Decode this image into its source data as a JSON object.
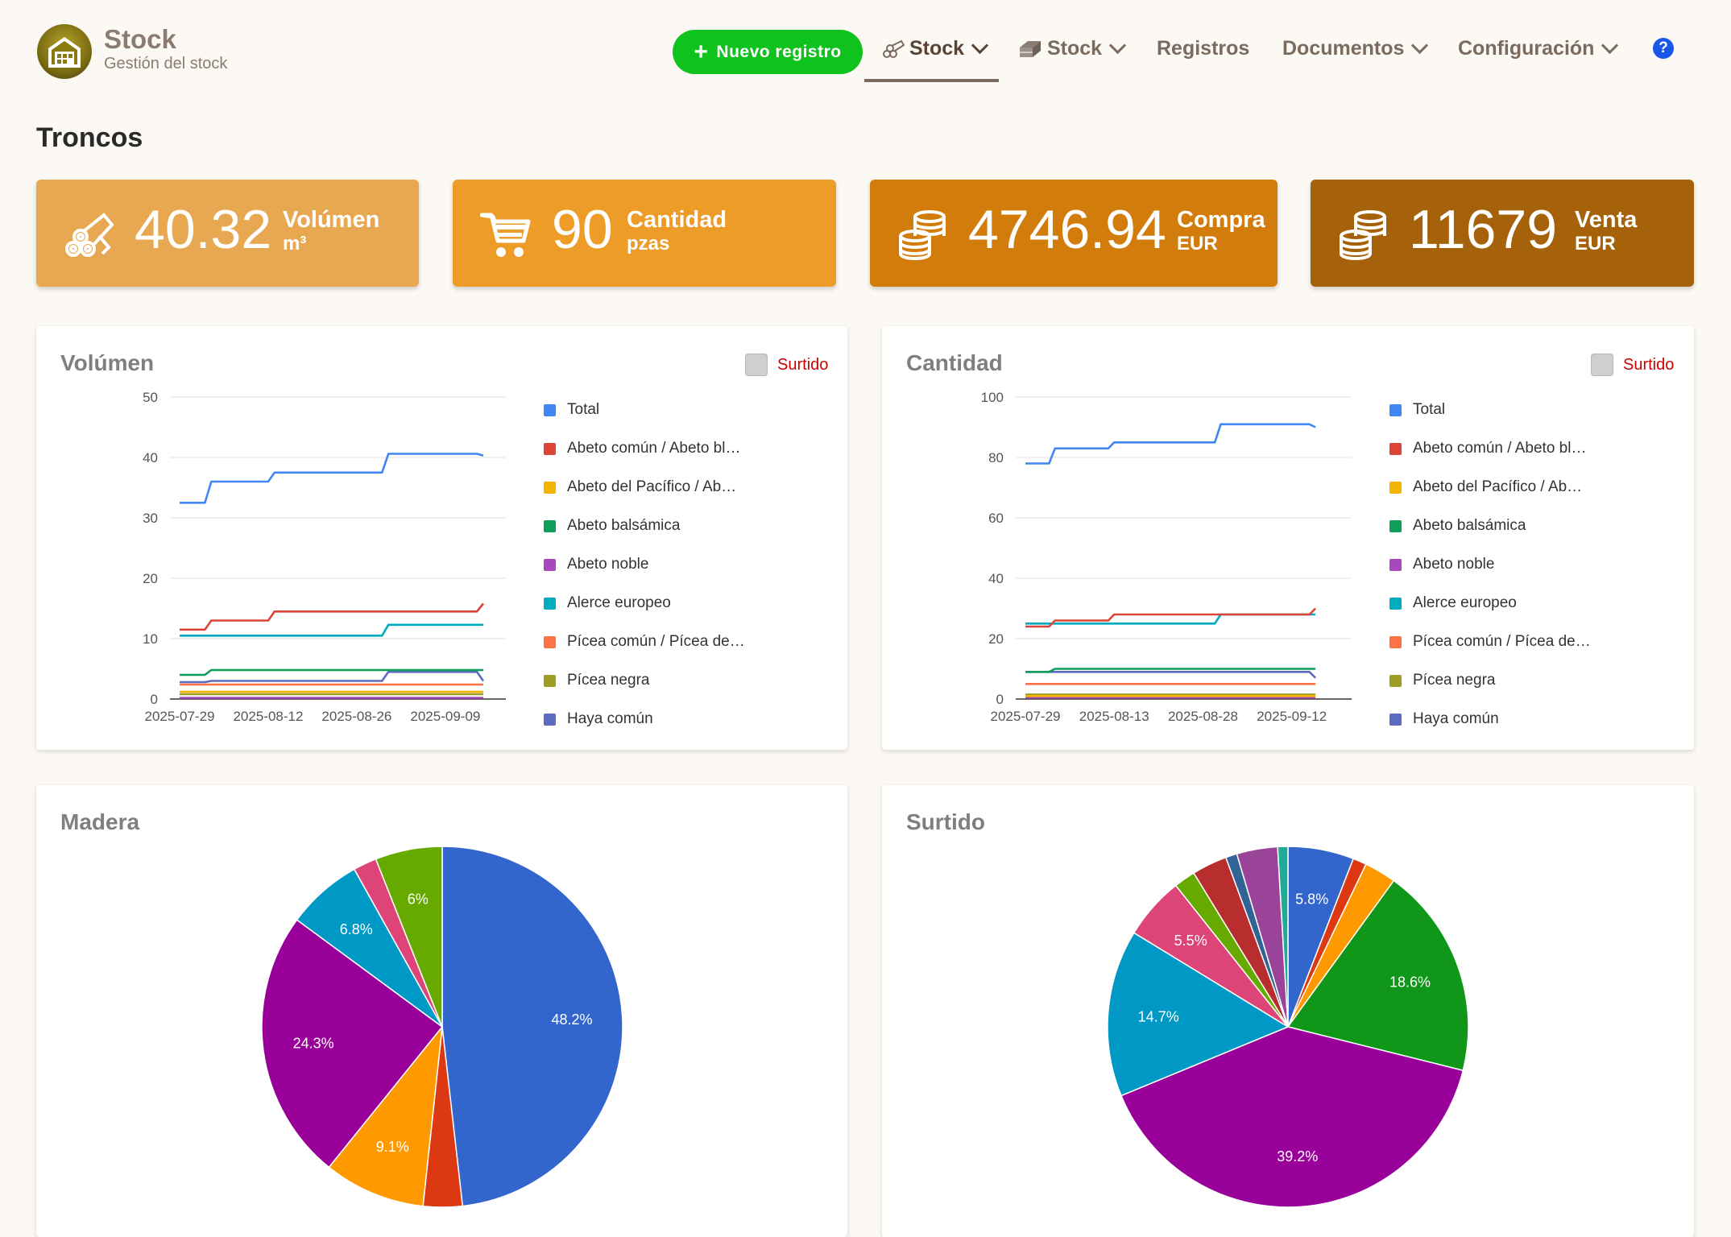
{
  "app": {
    "title": "Stock",
    "subtitle": "Gestión del stock"
  },
  "nav": {
    "new_button": "Nuevo registro",
    "items": [
      {
        "label": "Stock",
        "icon": "logs-icon"
      },
      {
        "label": "Stock",
        "icon": "lumber-icon"
      },
      {
        "label": "Registros"
      },
      {
        "label": "Documentos"
      },
      {
        "label": "Configuración"
      }
    ],
    "help": "?"
  },
  "page": {
    "title": "Troncos"
  },
  "stats": [
    {
      "value": "40.32",
      "label": "Volúmen",
      "unit": "m³",
      "color": "#e8a851",
      "icon": "logs-icon"
    },
    {
      "value": "90",
      "label": "Cantidad",
      "unit": "pzas",
      "color": "#ee9c28",
      "icon": "cart-icon"
    },
    {
      "value": "4746.94",
      "label": "Compra",
      "unit": "EUR",
      "color": "#d27d0b",
      "icon": "coins-icon"
    },
    {
      "value": "11679",
      "label": "Venta",
      "unit": "EUR",
      "color": "#a5620a",
      "icon": "coins-icon"
    }
  ],
  "colors": {
    "Total": "#4285f4",
    "Abeto común / Abeto bl…": "#db4437",
    "Abeto del Pacífico / Ab…": "#f4b400",
    "Abeto balsámica": "#0f9d58",
    "Abeto noble": "#ab47bc",
    "Alerce europeo": "#00acc1",
    "Pícea común / Pícea de…": "#ff7043",
    "Pícea negra": "#9e9d24",
    "Haya común": "#5c6bc0"
  },
  "chart_data": [
    {
      "id": "volumen",
      "type": "line",
      "title": "Volúmen",
      "toggle": "Surtido",
      "xticks": [
        "2025-07-29",
        "2025-08-12",
        "2025-08-26",
        "2025-09-09"
      ],
      "ylim": [
        0,
        50
      ],
      "yticks": [
        0,
        10,
        20,
        30,
        40,
        50
      ],
      "step_x": [
        "2025-07-29",
        "2025-08-02",
        "2025-08-03",
        "2025-08-12",
        "2025-08-13",
        "2025-08-30",
        "2025-08-31",
        "2025-09-14",
        "2025-09-15"
      ],
      "series": [
        {
          "name": "Total",
          "values": [
            32.5,
            32.5,
            36,
            36,
            37.5,
            37.5,
            40.6,
            40.6,
            40.3
          ]
        },
        {
          "name": "Abeto común / Abeto bl…",
          "values": [
            11.5,
            11.5,
            13,
            13,
            14.5,
            14.5,
            14.5,
            14.5,
            15.8
          ]
        },
        {
          "name": "Abeto del Pacífico / Ab…",
          "values": [
            1.2,
            1.2,
            1.2,
            1.2,
            1.2,
            1.2,
            1.2,
            1.2,
            1.2
          ]
        },
        {
          "name": "Abeto balsámica",
          "values": [
            4,
            4,
            4.8,
            4.8,
            4.8,
            4.8,
            4.8,
            4.8,
            4.8
          ]
        },
        {
          "name": "Abeto noble",
          "values": [
            0.2,
            0.2,
            0.2,
            0.2,
            0.2,
            0.2,
            0.2,
            0.2,
            0.2
          ]
        },
        {
          "name": "Alerce europeo",
          "values": [
            10.5,
            10.5,
            10.5,
            10.5,
            10.5,
            10.5,
            12.3,
            12.3,
            12.3
          ]
        },
        {
          "name": "Pícea común / Pícea de…",
          "values": [
            2.4,
            2.4,
            2.4,
            2.4,
            2.4,
            2.4,
            2.4,
            2.4,
            2.4
          ]
        },
        {
          "name": "Pícea negra",
          "values": [
            0.8,
            0.8,
            0.8,
            0.8,
            0.8,
            0.8,
            0.8,
            0.8,
            0.8
          ]
        },
        {
          "name": "Haya común",
          "values": [
            2.8,
            2.8,
            3,
            3,
            3,
            3,
            4.5,
            4.5,
            3
          ]
        }
      ]
    },
    {
      "id": "cantidad",
      "type": "line",
      "title": "Cantidad",
      "toggle": "Surtido",
      "xticks": [
        "2025-07-29",
        "2025-08-13",
        "2025-08-28",
        "2025-09-12"
      ],
      "ylim": [
        0,
        100
      ],
      "yticks": [
        0,
        20,
        40,
        60,
        80,
        100
      ],
      "step_x": [
        "2025-07-29",
        "2025-08-02",
        "2025-08-03",
        "2025-08-12",
        "2025-08-13",
        "2025-08-30",
        "2025-08-31",
        "2025-09-15",
        "2025-09-16"
      ],
      "series": [
        {
          "name": "Total",
          "values": [
            78,
            78,
            83,
            83,
            85,
            85,
            91,
            91,
            90
          ]
        },
        {
          "name": "Abeto común / Abeto bl…",
          "values": [
            24,
            24,
            26,
            26,
            28,
            28,
            28,
            28,
            30
          ]
        },
        {
          "name": "Abeto del Pacífico / Ab…",
          "values": [
            1,
            1,
            1,
            1,
            1,
            1,
            1,
            1,
            1
          ]
        },
        {
          "name": "Abeto balsámica",
          "values": [
            9,
            9,
            10,
            10,
            10,
            10,
            10,
            10,
            10
          ]
        },
        {
          "name": "Abeto noble",
          "values": [
            0.5,
            0.5,
            0.5,
            0.5,
            0.5,
            0.5,
            0.5,
            0.5,
            0.5
          ]
        },
        {
          "name": "Alerce europeo",
          "values": [
            25,
            25,
            25,
            25,
            25,
            25,
            28,
            28,
            28
          ]
        },
        {
          "name": "Pícea común / Pícea de…",
          "values": [
            5,
            5,
            5,
            5,
            5,
            5,
            5,
            5,
            5
          ]
        },
        {
          "name": "Pícea negra",
          "values": [
            1.5,
            1.5,
            1.5,
            1.5,
            1.5,
            1.5,
            1.5,
            1.5,
            1.5
          ]
        },
        {
          "name": "Haya común",
          "values": [
            9,
            9,
            9,
            9,
            9,
            9,
            9,
            9,
            7
          ]
        }
      ]
    },
    {
      "id": "madera",
      "type": "pie",
      "title": "Madera",
      "slices": [
        {
          "value": 48.2,
          "label": "48.2%",
          "color": "#3366cc"
        },
        {
          "value": 3.5,
          "label": "",
          "color": "#dc3912"
        },
        {
          "value": 9.1,
          "label": "9.1%",
          "color": "#ff9900"
        },
        {
          "value": 24.3,
          "label": "24.3%",
          "color": "#990099"
        },
        {
          "value": 6.8,
          "label": "6.8%",
          "color": "#0099c6"
        },
        {
          "value": 2.1,
          "label": "",
          "color": "#dd4477"
        },
        {
          "value": 6,
          "label": "6%",
          "color": "#66aa00"
        }
      ]
    },
    {
      "id": "surtido",
      "type": "pie",
      "title": "Surtido",
      "slices": [
        {
          "value": 5.8,
          "label": "5.8%",
          "color": "#3366cc"
        },
        {
          "value": 1.2,
          "label": "",
          "color": "#dc3912"
        },
        {
          "value": 2.8,
          "label": "",
          "color": "#ff9900"
        },
        {
          "value": 18.6,
          "label": "18.6%",
          "color": "#109618"
        },
        {
          "value": 39.2,
          "label": "39.2%",
          "color": "#990099"
        },
        {
          "value": 14.7,
          "label": "14.7%",
          "color": "#0099c6"
        },
        {
          "value": 5.5,
          "label": "5.5%",
          "color": "#dd4477"
        },
        {
          "value": 1.9,
          "label": "",
          "color": "#66aa00"
        },
        {
          "value": 3.1,
          "label": "",
          "color": "#b82e2e"
        },
        {
          "value": 1.0,
          "label": "",
          "color": "#316395"
        },
        {
          "value": 3.6,
          "label": "",
          "color": "#994499"
        },
        {
          "value": 0.9,
          "label": "",
          "color": "#22aa99"
        }
      ]
    }
  ]
}
